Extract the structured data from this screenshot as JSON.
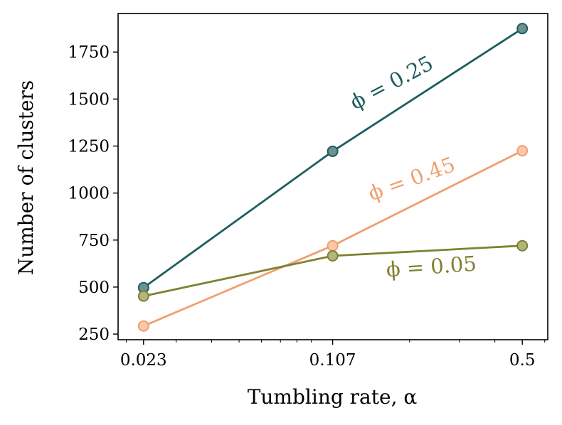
{
  "chart_data": {
    "type": "line",
    "xscale": "log",
    "x": [
      0.023,
      0.107,
      0.5
    ],
    "xticks": [
      "0.023",
      "0.107",
      "0.5"
    ],
    "xlabel": "Tumbling rate, α",
    "ylabel": "Number of clusters",
    "ylim": [
      220,
      1955
    ],
    "yticks": [
      250,
      500,
      750,
      1000,
      1250,
      1500,
      1750
    ],
    "grid": false,
    "series": [
      {
        "name": "ϕ = 0.25",
        "color": "#1f5e5f",
        "values": [
          497,
          1222,
          1875
        ]
      },
      {
        "name": "ϕ = 0.45",
        "color": "#f0a070",
        "values": [
          293,
          720,
          1225
        ]
      },
      {
        "name": "ϕ = 0.05",
        "color": "#7f8131",
        "values": [
          452,
          666,
          720
        ]
      }
    ]
  }
}
